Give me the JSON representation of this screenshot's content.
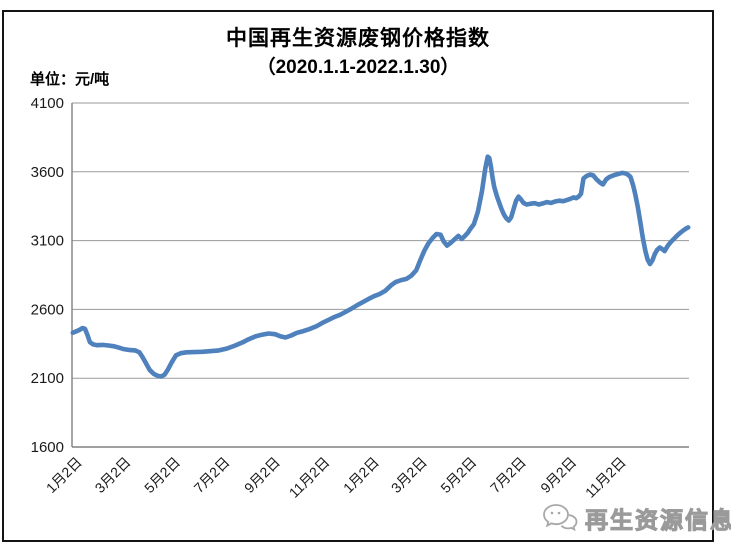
{
  "header": {
    "title_line1": "中国再生资源废钢价格指数",
    "title_line2": "（2020.1.1-2022.1.30）",
    "unit_label": "单位：元/吨"
  },
  "watermark": {
    "site_name": "再生资源信息网",
    "logo_icon": "chat-bubbles-icon"
  },
  "colors": {
    "line": "#4F81BD",
    "grid": "#9a9a9a",
    "axis": "#808080",
    "frame": "#141414",
    "text": "#1a1a1a",
    "watermark": "#a0a0a0"
  },
  "chart_data": {
    "type": "line",
    "title": "中国再生资源废钢价格指数",
    "subtitle": "（2020.1.1-2022.1.30）",
    "unit": "元/吨",
    "ylabel": "元/吨",
    "ylim": [
      1600,
      4100
    ],
    "ytick_interval": 500,
    "yticks": [
      1600,
      2100,
      2600,
      3100,
      3600,
      4100
    ],
    "xtick_labels": [
      "1月2日",
      "3月2日",
      "5月2日",
      "7月2日",
      "9月2日",
      "11月2日",
      "1月2日",
      "3月2日",
      "5月2日",
      "7月2日",
      "9月2日",
      "11月2日"
    ],
    "xtick_days": [
      1,
      61,
      122,
      183,
      245,
      306,
      367,
      426,
      487,
      548,
      610,
      671
    ],
    "x_domain_days": [
      0,
      760
    ],
    "grid": "horizontal",
    "legend": "none",
    "series": [
      {
        "name": "废钢价格指数",
        "color": "#4F81BD",
        "points": [
          [
            1,
            2430
          ],
          [
            5,
            2440
          ],
          [
            9,
            2450
          ],
          [
            13,
            2465
          ],
          [
            16,
            2458
          ],
          [
            19,
            2415
          ],
          [
            22,
            2362
          ],
          [
            26,
            2346
          ],
          [
            31,
            2340
          ],
          [
            38,
            2342
          ],
          [
            45,
            2338
          ],
          [
            52,
            2332
          ],
          [
            58,
            2322
          ],
          [
            63,
            2312
          ],
          [
            70,
            2306
          ],
          [
            78,
            2302
          ],
          [
            83,
            2288
          ],
          [
            87,
            2252
          ],
          [
            91,
            2210
          ],
          [
            96,
            2158
          ],
          [
            101,
            2130
          ],
          [
            106,
            2116
          ],
          [
            110,
            2112
          ],
          [
            114,
            2126
          ],
          [
            118,
            2162
          ],
          [
            123,
            2218
          ],
          [
            128,
            2266
          ],
          [
            134,
            2282
          ],
          [
            141,
            2288
          ],
          [
            150,
            2290
          ],
          [
            160,
            2292
          ],
          [
            170,
            2296
          ],
          [
            181,
            2302
          ],
          [
            191,
            2316
          ],
          [
            201,
            2338
          ],
          [
            210,
            2360
          ],
          [
            218,
            2384
          ],
          [
            226,
            2404
          ],
          [
            234,
            2416
          ],
          [
            242,
            2425
          ],
          [
            250,
            2420
          ],
          [
            257,
            2404
          ],
          [
            263,
            2396
          ],
          [
            270,
            2410
          ],
          [
            277,
            2430
          ],
          [
            285,
            2442
          ],
          [
            293,
            2458
          ],
          [
            301,
            2478
          ],
          [
            309,
            2504
          ],
          [
            316,
            2524
          ],
          [
            323,
            2544
          ],
          [
            330,
            2560
          ],
          [
            337,
            2582
          ],
          [
            344,
            2605
          ],
          [
            351,
            2630
          ],
          [
            358,
            2652
          ],
          [
            365,
            2675
          ],
          [
            372,
            2696
          ],
          [
            379,
            2712
          ],
          [
            386,
            2736
          ],
          [
            393,
            2775
          ],
          [
            399,
            2800
          ],
          [
            406,
            2814
          ],
          [
            412,
            2822
          ],
          [
            418,
            2846
          ],
          [
            424,
            2884
          ],
          [
            429,
            2958
          ],
          [
            434,
            3026
          ],
          [
            439,
            3080
          ],
          [
            444,
            3118
          ],
          [
            449,
            3148
          ],
          [
            454,
            3142
          ],
          [
            458,
            3092
          ],
          [
            462,
            3064
          ],
          [
            467,
            3086
          ],
          [
            472,
            3114
          ],
          [
            476,
            3134
          ],
          [
            480,
            3112
          ],
          [
            484,
            3134
          ],
          [
            488,
            3160
          ],
          [
            490,
            3180
          ],
          [
            495,
            3220
          ],
          [
            500,
            3310
          ],
          [
            505,
            3460
          ],
          [
            509,
            3620
          ],
          [
            512,
            3710
          ],
          [
            514,
            3700
          ],
          [
            516,
            3640
          ],
          [
            518,
            3560
          ],
          [
            520,
            3490
          ],
          [
            523,
            3430
          ],
          [
            526,
            3380
          ],
          [
            529,
            3330
          ],
          [
            532,
            3290
          ],
          [
            535,
            3262
          ],
          [
            538,
            3245
          ],
          [
            541,
            3270
          ],
          [
            544,
            3330
          ],
          [
            547,
            3390
          ],
          [
            550,
            3420
          ],
          [
            553,
            3400
          ],
          [
            556,
            3375
          ],
          [
            560,
            3362
          ],
          [
            565,
            3368
          ],
          [
            570,
            3372
          ],
          [
            575,
            3362
          ],
          [
            580,
            3370
          ],
          [
            585,
            3380
          ],
          [
            590,
            3374
          ],
          [
            595,
            3384
          ],
          [
            600,
            3390
          ],
          [
            605,
            3386
          ],
          [
            610,
            3396
          ],
          [
            614,
            3404
          ],
          [
            618,
            3414
          ],
          [
            621,
            3408
          ],
          [
            624,
            3420
          ],
          [
            627,
            3440
          ],
          [
            630,
            3552
          ],
          [
            634,
            3570
          ],
          [
            638,
            3580
          ],
          [
            642,
            3574
          ],
          [
            646,
            3546
          ],
          [
            650,
            3524
          ],
          [
            654,
            3508
          ],
          [
            658,
            3545
          ],
          [
            662,
            3562
          ],
          [
            666,
            3572
          ],
          [
            670,
            3580
          ],
          [
            674,
            3586
          ],
          [
            678,
            3592
          ],
          [
            682,
            3588
          ],
          [
            685,
            3578
          ],
          [
            688,
            3562
          ],
          [
            691,
            3505
          ],
          [
            694,
            3432
          ],
          [
            697,
            3340
          ],
          [
            700,
            3235
          ],
          [
            703,
            3125
          ],
          [
            706,
            3030
          ],
          [
            709,
            2962
          ],
          [
            712,
            2930
          ],
          [
            715,
            2958
          ],
          [
            718,
            3004
          ],
          [
            721,
            3034
          ],
          [
            724,
            3050
          ],
          [
            727,
            3038
          ],
          [
            730,
            3024
          ],
          [
            734,
            3064
          ],
          [
            738,
            3092
          ],
          [
            742,
            3116
          ],
          [
            746,
            3140
          ],
          [
            750,
            3160
          ],
          [
            754,
            3178
          ],
          [
            757,
            3190
          ],
          [
            759,
            3196
          ]
        ]
      }
    ]
  }
}
